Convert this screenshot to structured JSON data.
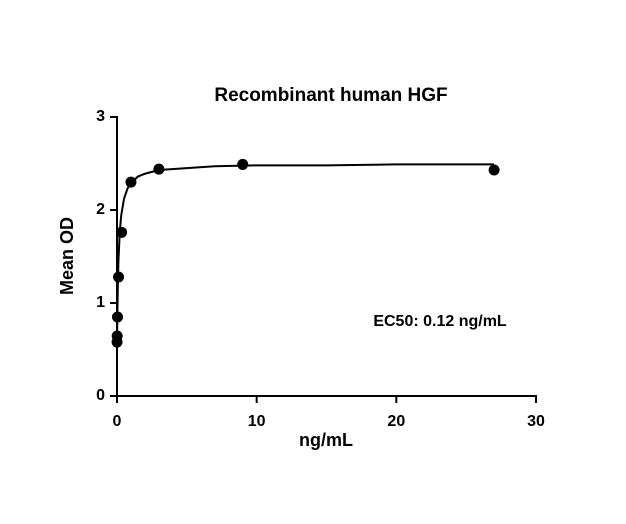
{
  "chart_data": {
    "type": "scatter",
    "title": "Recombinant human HGF",
    "x_label": "ng/mL",
    "y_label": "Mean OD",
    "annotation": "EC50: 0.12 ng/mL",
    "xlim": [
      0,
      30
    ],
    "xticks": [
      0,
      10,
      20,
      30
    ],
    "ylim": [
      0,
      3
    ],
    "yticks": [
      0,
      1,
      2,
      3
    ],
    "grid": false,
    "series": [
      {
        "color": "#000000",
        "mode": "markers",
        "x": [
          0.004,
          0.012,
          0.037,
          0.11,
          0.33,
          1,
          3,
          9,
          27
        ],
        "values": [
          0.58,
          0.645,
          0.85,
          1.28,
          1.76,
          2.3,
          2.44,
          2.49,
          2.43
        ]
      },
      {
        "color": "#000000",
        "mode": "line",
        "x": [
          0,
          0.05,
          0.1,
          0.2,
          0.3,
          0.5,
          0.75,
          1,
          1.5,
          2,
          3,
          5,
          7,
          10,
          15,
          20,
          27
        ],
        "values": [
          0.55,
          1.12,
          1.44,
          1.77,
          1.94,
          2.12,
          2.23,
          2.29,
          2.36,
          2.39,
          2.43,
          2.45,
          2.47,
          2.48,
          2.48,
          2.49,
          2.49
        ]
      }
    ]
  }
}
